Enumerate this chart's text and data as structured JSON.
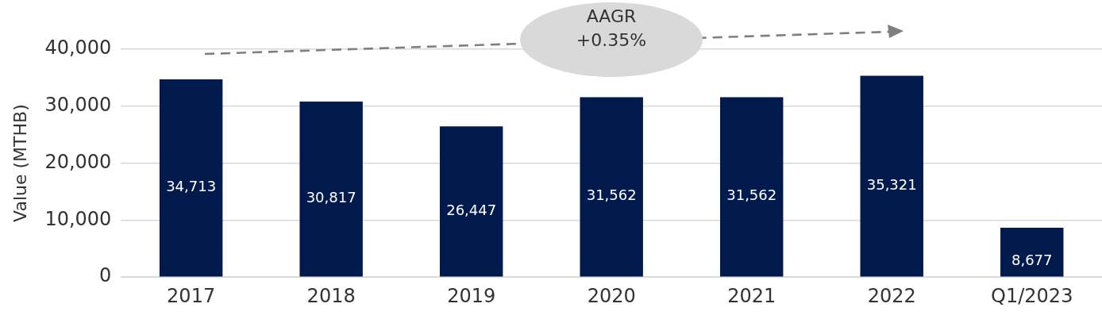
{
  "chart_data": {
    "type": "bar",
    "ylabel": "Value (MTHB)",
    "categories": [
      "2017",
      "2018",
      "2019",
      "2020",
      "2021",
      "2022",
      "Q1/2023"
    ],
    "values": [
      34713,
      30817,
      26447,
      31562,
      31562,
      35321,
      8677
    ],
    "color": "#001a4d",
    "value_labels": [
      "34,713",
      "30,817",
      "26,447",
      "31,562",
      "31,562",
      "35,321",
      "8,677"
    ],
    "ylim": [
      0,
      40000
    ],
    "yticks": [
      0,
      {
        "value": 10000,
        "label": "10,000"
      },
      {
        "value": 20000,
        "label": "20,000"
      },
      {
        "value": 30000,
        "label": "30,000"
      },
      {
        "value": 40000,
        "label": "40,000"
      }
    ],
    "grid": "y",
    "legend": false,
    "annotations": [
      "AAGR\n+0.35%"
    ]
  }
}
